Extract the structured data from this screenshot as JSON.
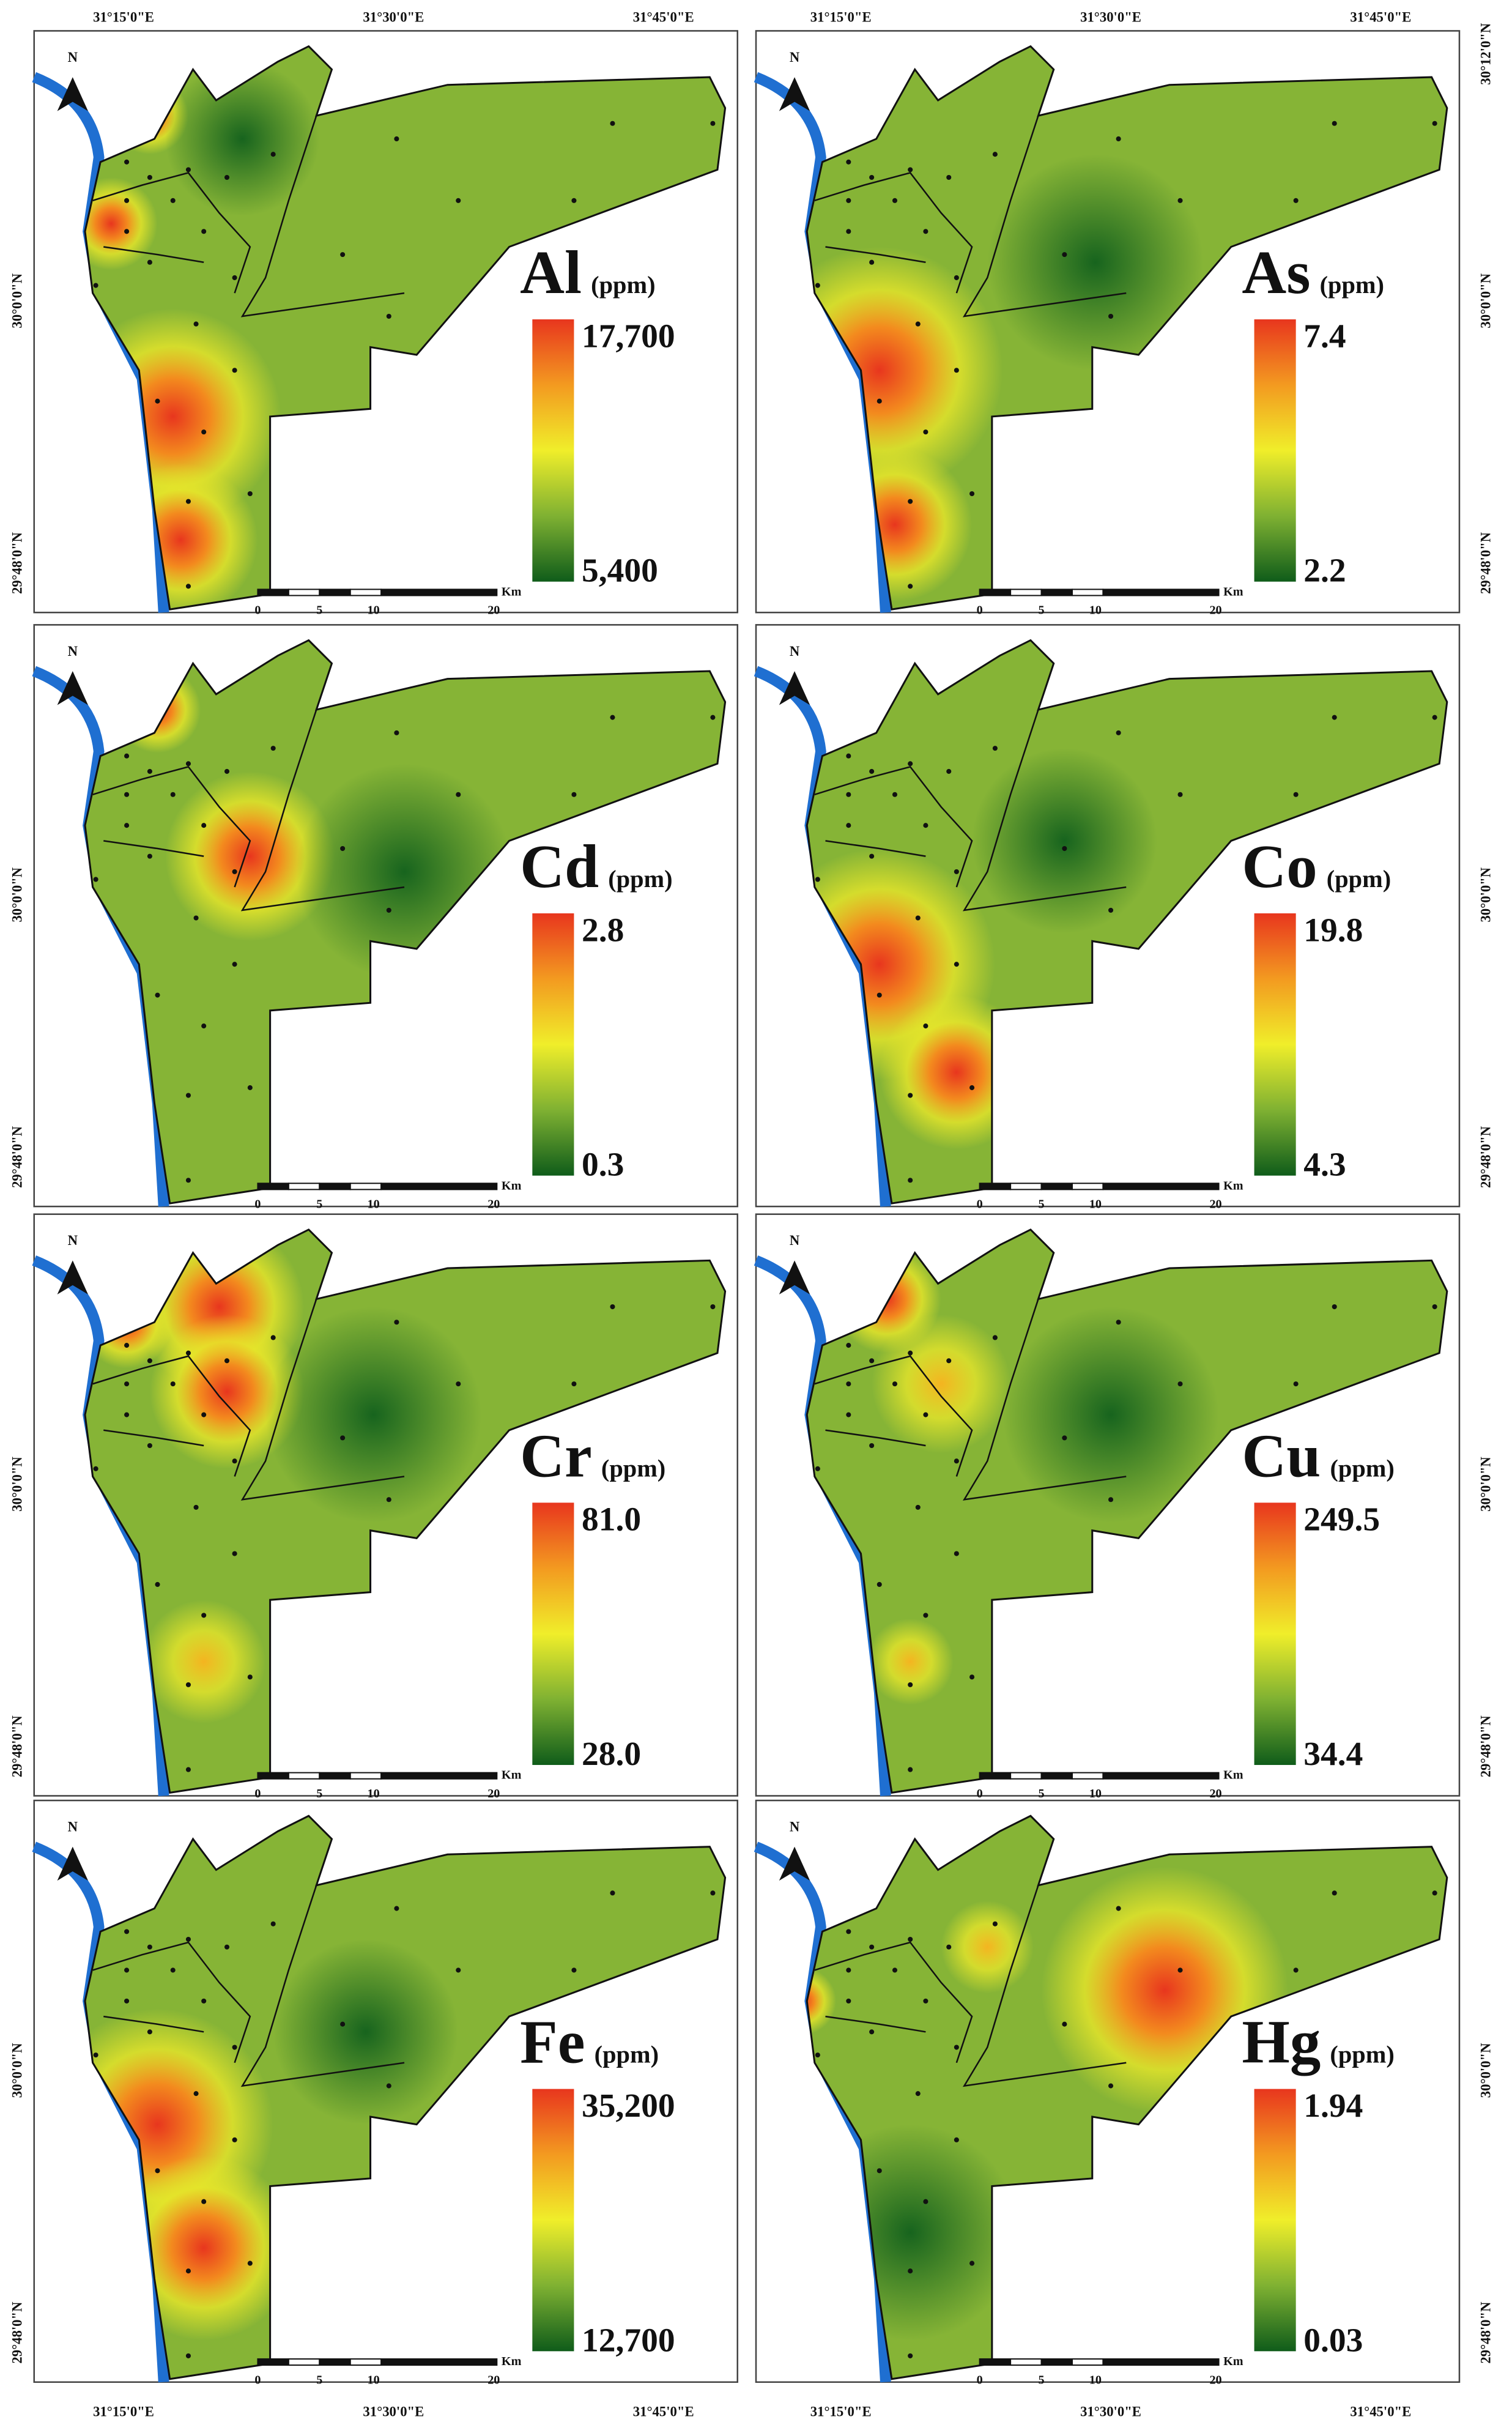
{
  "coordinates": {
    "longitudes": [
      "31°15'0\"E",
      "31°30'0\"E",
      "31°45'0\"E"
    ],
    "latitudes": [
      "30°12'0\"N",
      "30°0'0\"N",
      "29°48'0\"N"
    ]
  },
  "north": "N",
  "scale_bar": {
    "ticks": [
      "0",
      "5",
      "10",
      "20"
    ],
    "unit": "Km"
  },
  "panels": [
    {
      "element": "Al",
      "unit": "(ppm)",
      "max": "17,700",
      "min": "5,400"
    },
    {
      "element": "As",
      "unit": "(ppm)",
      "max": "7.4",
      "min": "2.2"
    },
    {
      "element": "Cd",
      "unit": "(ppm)",
      "max": "2.8",
      "min": "0.3"
    },
    {
      "element": "Co",
      "unit": "(ppm)",
      "max": "19.8",
      "min": "4.3"
    },
    {
      "element": "Cr",
      "unit": "(ppm)",
      "max": "81.0",
      "min": "28.0"
    },
    {
      "element": "Cu",
      "unit": "(ppm)",
      "max": "249.5",
      "min": "34.4"
    },
    {
      "element": "Fe",
      "unit": "(ppm)",
      "max": "35,200",
      "min": "12,700"
    },
    {
      "element": "Hg",
      "unit": "(ppm)",
      "max": "1.94",
      "min": "0.03"
    }
  ]
}
